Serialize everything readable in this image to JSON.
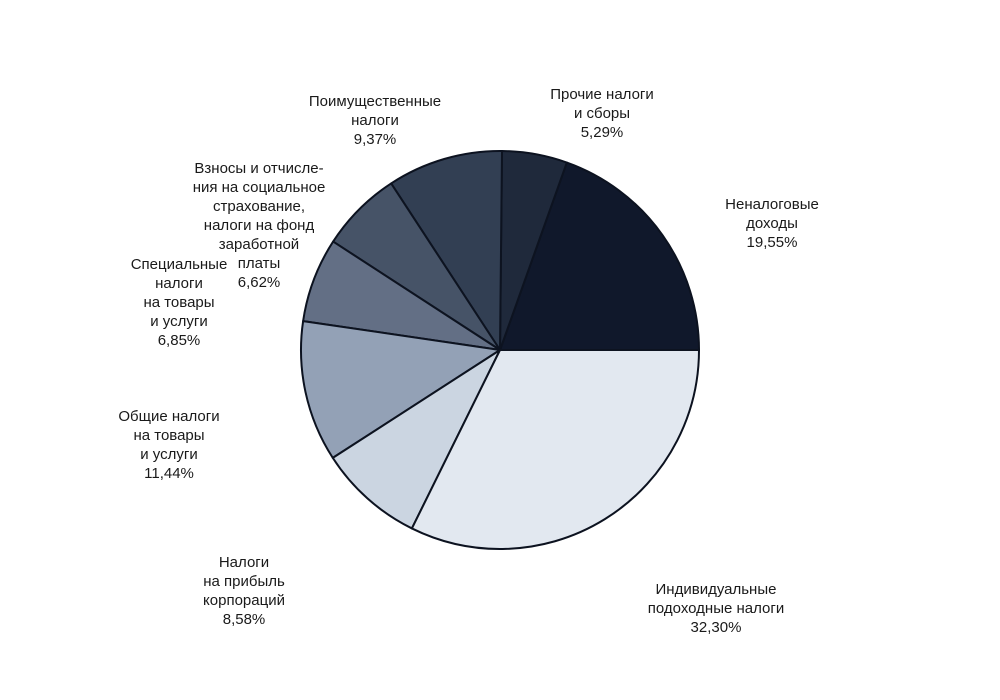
{
  "chart_data": {
    "type": "pie",
    "start_angle_deg": 0,
    "direction": "counterclockwise",
    "slices": [
      {
        "label_lines": [
          "Неналоговые",
          "доходы"
        ],
        "value_text": "19,55%",
        "value": 19.55,
        "color": "#10182b"
      },
      {
        "label_lines": [
          "Прочие налоги",
          "и сборы"
        ],
        "value_text": "5,29%",
        "value": 5.29,
        "color": "#1f293b"
      },
      {
        "label_lines": [
          "Поимущественные",
          "налоги"
        ],
        "value_text": "9,37%",
        "value": 9.37,
        "color": "#323f53"
      },
      {
        "label_lines": [
          "Взносы и отчисле-",
          "ния на социальное",
          "страхование,",
          "налоги на фонд",
          "заработной",
          "платы"
        ],
        "value_text": "6,62%",
        "value": 6.62,
        "color": "#465367"
      },
      {
        "label_lines": [
          "Специальные",
          "налоги",
          "на товары",
          "и услуги"
        ],
        "value_text": "6,85%",
        "value": 6.85,
        "color": "#636f85"
      },
      {
        "label_lines": [
          "Общие налоги",
          "на товары",
          "и услуги"
        ],
        "value_text": "11,44%",
        "value": 11.44,
        "color": "#93a1b6"
      },
      {
        "label_lines": [
          "Налоги",
          "на прибыль",
          "корпораций"
        ],
        "value_text": "8,58%",
        "value": 8.58,
        "color": "#cbd5e1"
      },
      {
        "label_lines": [
          "Индивидуальные",
          "подоходные налоги"
        ],
        "value_text": "32,30%",
        "value": 32.3,
        "color": "#e2e8f0"
      }
    ]
  }
}
